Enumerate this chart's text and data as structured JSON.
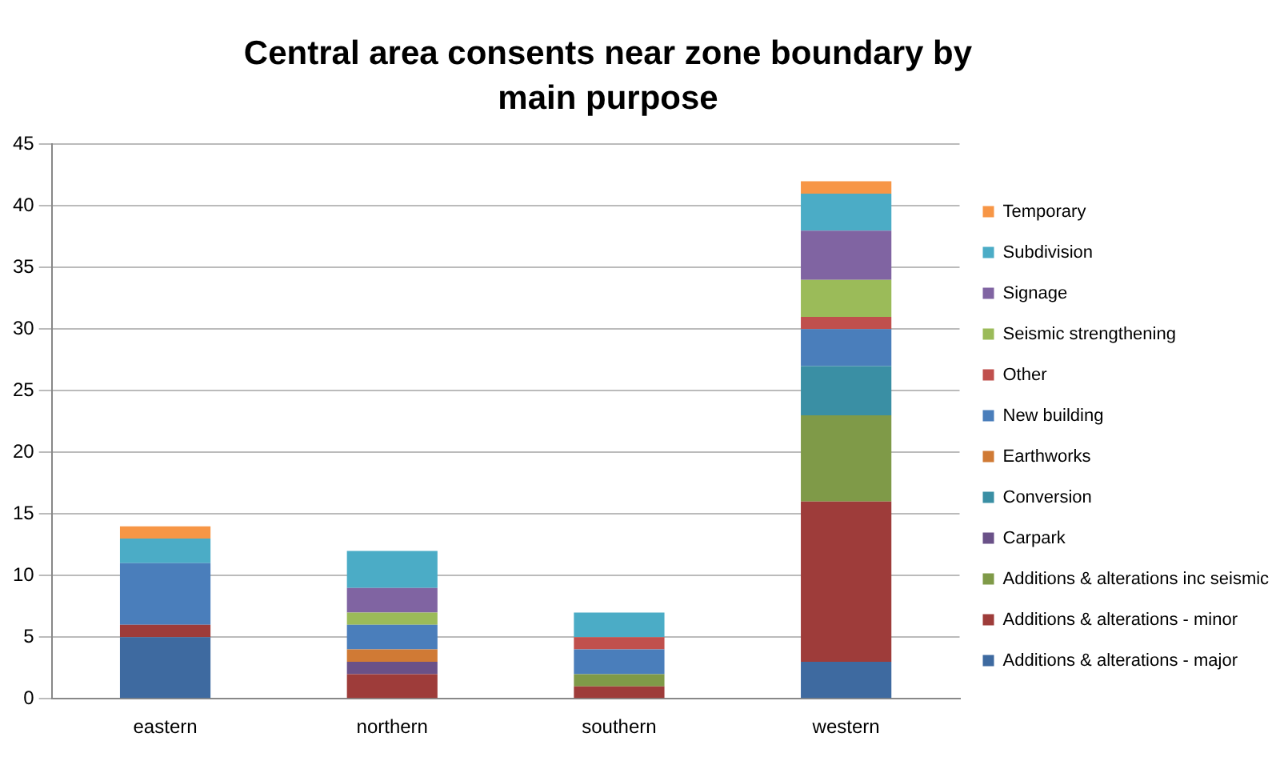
{
  "chart_data": {
    "type": "bar",
    "title": "Central area consents near zone boundary by main purpose",
    "categories": [
      "eastern",
      "northern",
      "southern",
      "western"
    ],
    "stacked": true,
    "ylim": [
      0,
      45
    ],
    "yticks": [
      0,
      5,
      10,
      15,
      20,
      25,
      30,
      35,
      40,
      45
    ],
    "grid": "y",
    "legend": "right",
    "series": [
      {
        "name": "Additions & alterations - major",
        "color": "#3e6aa0",
        "values": [
          5,
          0,
          0,
          3
        ]
      },
      {
        "name": "Additions & alterations - minor",
        "color": "#9e3c3a",
        "values": [
          1,
          2,
          1,
          13
        ]
      },
      {
        "name": "Additions & alterations inc seismic",
        "color": "#7f9a48",
        "values": [
          0,
          0,
          1,
          7
        ]
      },
      {
        "name": "Carpark",
        "color": "#6a5188",
        "values": [
          0,
          1,
          0,
          0
        ]
      },
      {
        "name": "Conversion",
        "color": "#3a8fa4",
        "values": [
          0,
          0,
          0,
          4
        ]
      },
      {
        "name": "Earthworks",
        "color": "#d07a35",
        "values": [
          0,
          1,
          0,
          0
        ]
      },
      {
        "name": "New building",
        "color": "#4a7ebb",
        "values": [
          5,
          2,
          2,
          3
        ]
      },
      {
        "name": "Other",
        "color": "#c0504d",
        "values": [
          0,
          0,
          1,
          1
        ]
      },
      {
        "name": "Seismic strengthening",
        "color": "#9bbb59",
        "values": [
          0,
          1,
          0,
          3
        ]
      },
      {
        "name": "Signage",
        "color": "#8064a2",
        "values": [
          0,
          2,
          0,
          4
        ]
      },
      {
        "name": "Subdivision",
        "color": "#4bacc6",
        "values": [
          2,
          3,
          2,
          3
        ]
      },
      {
        "name": "Temporary",
        "color": "#f79646",
        "values": [
          1,
          0,
          0,
          1
        ]
      }
    ]
  }
}
